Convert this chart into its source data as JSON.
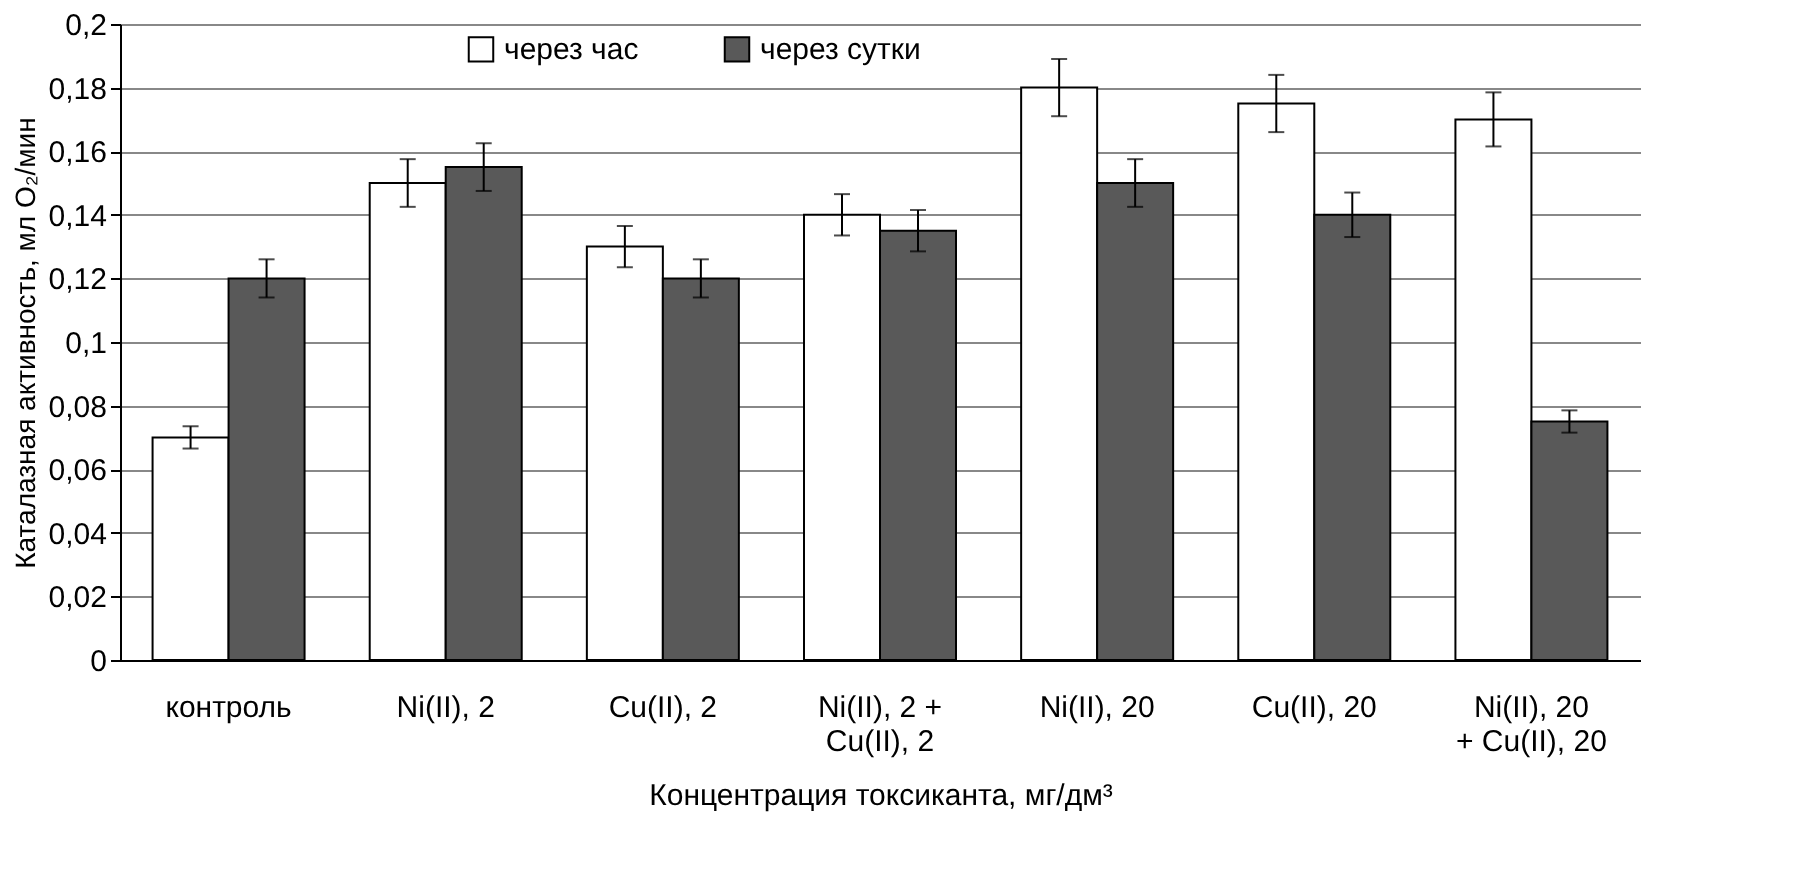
{
  "chart_data": {
    "type": "bar",
    "xlabel": "Концентрация токсиканта, мг/дм³",
    "ylabel": "Каталазная активность, мл O₂/мин",
    "categories": [
      "контроль",
      "Ni(II), 2",
      "Cu(II), 2",
      "Ni(II), 2 +\nCu(II), 2",
      "Ni(II), 20",
      "Cu(II), 20",
      "Ni(II), 20\n+ Cu(II), 20"
    ],
    "series": [
      {
        "name": "через час",
        "color": "#ffffff",
        "values": [
          0.07,
          0.15,
          0.13,
          0.14,
          0.18,
          0.175,
          0.17
        ],
        "errors": [
          0.0035,
          0.0075,
          0.0065,
          0.0065,
          0.009,
          0.009,
          0.0085
        ]
      },
      {
        "name": "через сутки",
        "color": "#595959",
        "values": [
          0.12,
          0.155,
          0.12,
          0.135,
          0.15,
          0.14,
          0.075
        ],
        "errors": [
          0.006,
          0.0075,
          0.006,
          0.0065,
          0.0075,
          0.007,
          0.0035
        ]
      }
    ],
    "ylim": [
      0,
      0.2
    ],
    "yticks": [
      {
        "value": 0,
        "label": "0"
      },
      {
        "value": 0.02,
        "label": "0,02"
      },
      {
        "value": 0.04,
        "label": "0,04"
      },
      {
        "value": 0.06,
        "label": "0,06"
      },
      {
        "value": 0.08,
        "label": "0,08"
      },
      {
        "value": 0.1,
        "label": "0,1"
      },
      {
        "value": 0.12,
        "label": "0,12"
      },
      {
        "value": 0.14,
        "label": "0,14"
      },
      {
        "value": 0.16,
        "label": "0,16"
      },
      {
        "value": 0.18,
        "label": "0,18"
      },
      {
        "value": 0.2,
        "label": "0,2"
      }
    ],
    "grid": "y",
    "legend": "top"
  }
}
